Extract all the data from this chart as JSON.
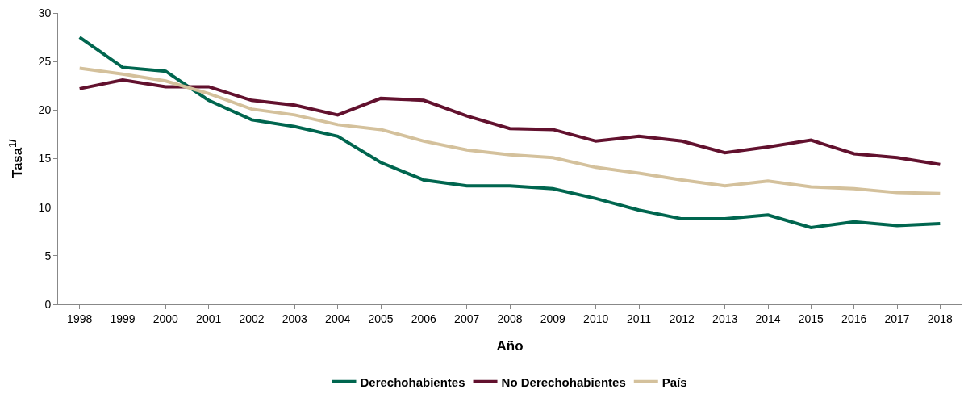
{
  "chart_data": {
    "type": "line",
    "xlabel": "Año",
    "ylabel": "Tasa$^{1/}$",
    "categories": [
      "1998",
      "1999",
      "2000",
      "2001",
      "2002",
      "2003",
      "2004",
      "2005",
      "2006",
      "2007",
      "2008",
      "2009",
      "2010",
      "2011",
      "2012",
      "2013",
      "2014",
      "2015",
      "2016",
      "2017",
      "2018"
    ],
    "series": [
      {
        "name": "Derechohabientes",
        "color": "#00664f",
        "values": [
          27.5,
          24.4,
          24.0,
          21.0,
          19.0,
          18.3,
          17.3,
          14.6,
          12.8,
          12.2,
          12.2,
          11.9,
          10.9,
          9.7,
          8.8,
          8.8,
          9.2,
          7.9,
          8.5,
          8.1,
          8.3
        ]
      },
      {
        "name": "No Derechohabientes",
        "color": "#62112e",
        "values": [
          22.2,
          23.1,
          22.4,
          22.4,
          21.0,
          20.5,
          19.5,
          21.2,
          21.0,
          19.4,
          18.1,
          18.0,
          16.8,
          17.3,
          16.8,
          15.6,
          16.2,
          16.9,
          15.5,
          15.1,
          14.4
        ]
      },
      {
        "name": "País",
        "color": "#d4c19c",
        "values": [
          24.3,
          23.7,
          23.0,
          21.7,
          20.1,
          19.5,
          18.5,
          18.0,
          16.8,
          15.9,
          15.4,
          15.1,
          14.1,
          13.5,
          12.8,
          12.2,
          12.7,
          12.1,
          11.9,
          11.5,
          11.4
        ]
      }
    ],
    "ylim": [
      0,
      30
    ],
    "yticks": [
      0,
      5,
      10,
      15,
      20,
      25,
      30
    ],
    "legend": "bottom",
    "marker": "none",
    "line_style": "solid"
  }
}
